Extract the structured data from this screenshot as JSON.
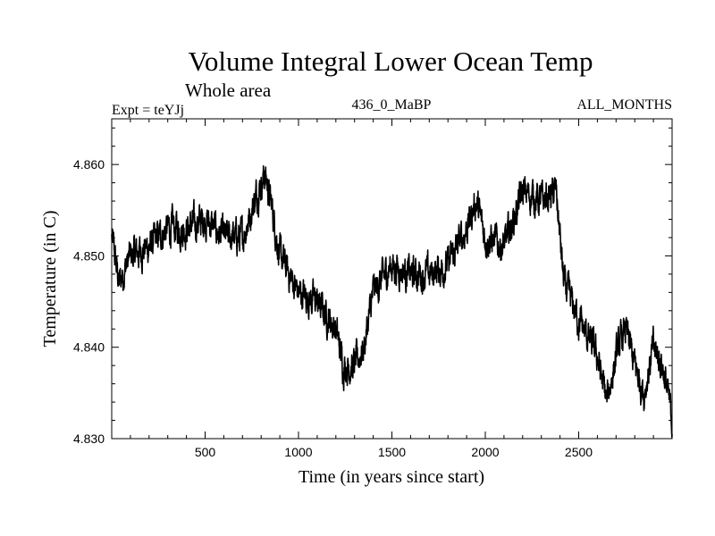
{
  "chart_data": {
    "type": "line",
    "title": "Volume Integral Lower Ocean Temp",
    "subtitle": "Whole area",
    "experiment": "Expt = teYJj",
    "period": "436_0_MaBP",
    "months": "ALL_MONTHS",
    "xlabel": "Time (in years since start)",
    "ylabel": "Temperature (in C)",
    "xlim": [
      0,
      3000
    ],
    "ylim": [
      4.83,
      4.865
    ],
    "x_ticks": [
      500,
      1000,
      1500,
      2000,
      2500
    ],
    "x_tick_labels": [
      "500",
      "1000",
      "1500",
      "2000",
      "2500"
    ],
    "y_ticks": [
      4.83,
      4.84,
      4.85,
      4.86
    ],
    "y_tick_labels": [
      "4.830",
      "4.840",
      "4.850",
      "4.860"
    ],
    "grid": false,
    "series": [
      {
        "name": "Lower Ocean Temp",
        "color": "#000000",
        "noise_amplitude": 0.0022,
        "trend_x": [
          0,
          40,
          100,
          200,
          300,
          400,
          500,
          600,
          700,
          780,
          820,
          860,
          900,
          1000,
          1100,
          1200,
          1240,
          1300,
          1350,
          1400,
          1500,
          1600,
          1700,
          1800,
          1900,
          1950,
          2000,
          2100,
          2200,
          2300,
          2380,
          2420,
          2500,
          2600,
          2650,
          2700,
          2750,
          2800,
          2850,
          2900,
          2950,
          3000
        ],
        "trend_y": [
          4.852,
          4.847,
          4.85,
          4.851,
          4.853,
          4.853,
          4.854,
          4.852,
          4.852,
          4.857,
          4.859,
          4.855,
          4.85,
          4.846,
          4.845,
          4.842,
          4.838,
          4.838,
          4.84,
          4.846,
          4.849,
          4.848,
          4.848,
          4.849,
          4.853,
          4.856,
          4.852,
          4.851,
          4.857,
          4.856,
          4.857,
          4.847,
          4.843,
          4.839,
          4.834,
          4.839,
          4.842,
          4.838,
          4.835,
          4.84,
          4.838,
          4.832
        ]
      }
    ]
  }
}
